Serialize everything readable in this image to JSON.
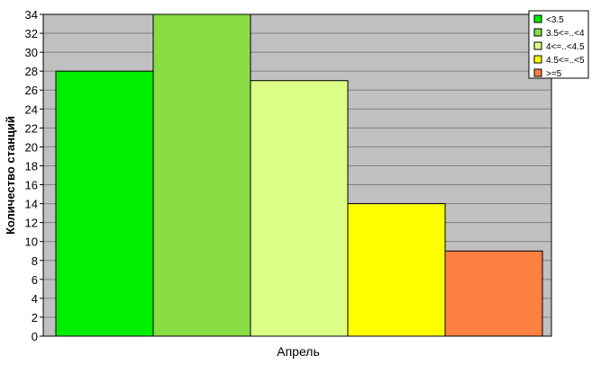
{
  "chart_data": {
    "type": "bar",
    "xlabel": "",
    "ylabel": "Количество станций",
    "category": "Апрель",
    "ylim": [
      0,
      34
    ],
    "ytick_step": 2,
    "grid": true,
    "legend_position": "top-right",
    "plot_background": "#c0c0c0",
    "series": [
      {
        "name": "<3.5",
        "value": 28,
        "color": "#00ee00"
      },
      {
        "name": "3.5<=..<4",
        "value": 34,
        "color": "#88dd44"
      },
      {
        "name": "4<=..<4.5",
        "value": 27,
        "color": "#ddff88"
      },
      {
        "name": "4.5<=..<5",
        "value": 14,
        "color": "#ffff00"
      },
      {
        "name": ">=5",
        "value": 9,
        "color": "#ff8040"
      }
    ]
  }
}
